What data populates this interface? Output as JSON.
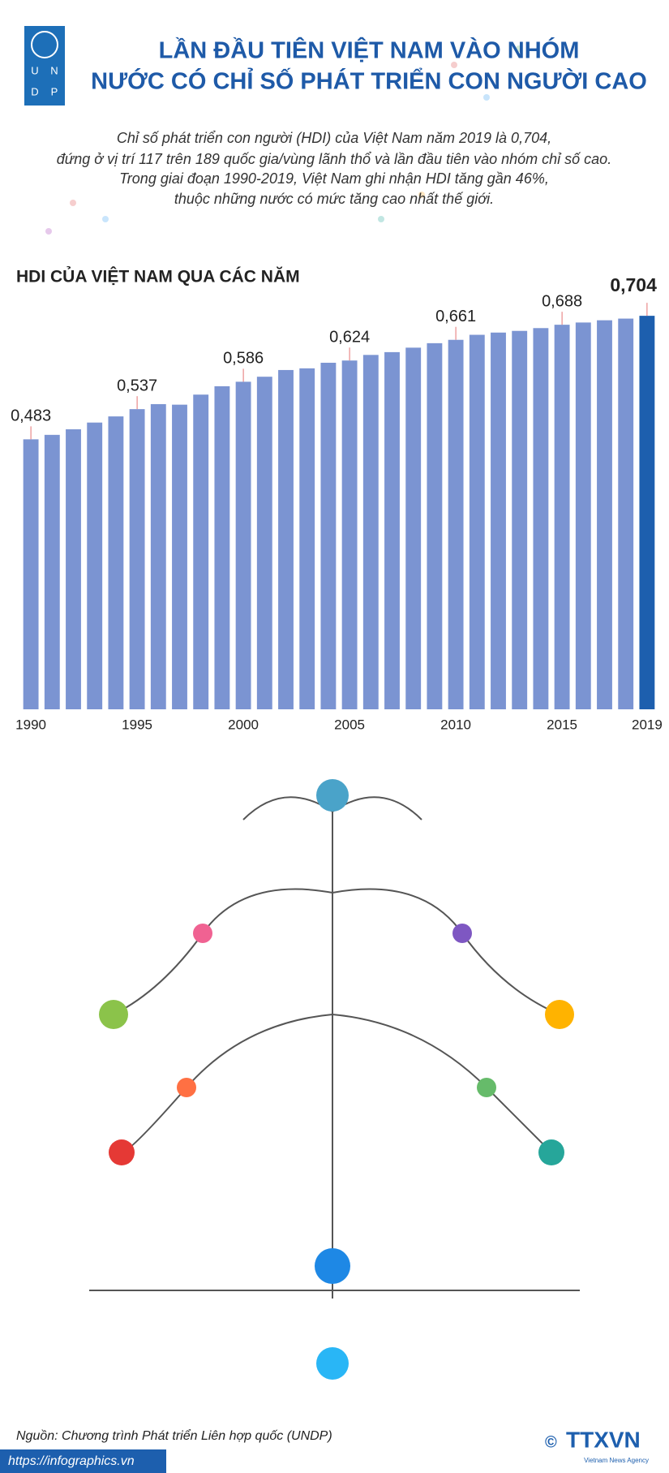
{
  "header": {
    "logo": [
      "U",
      "N",
      "D",
      "P"
    ],
    "title": [
      "LẦN ĐẦU TIÊN VIỆT NAM VÀO NHÓM",
      "NƯỚC CÓ CHỈ SỐ PHÁT TRIỂN CON NGƯỜI CAO"
    ],
    "subtitle": [
      "Chỉ số phát triển con người (HDI) của Việt Nam năm 2019 là 0,704,",
      "đứng ở vị trí 117 trên 189 quốc gia/vùng lãnh thổ và lần đầu tiên vào nhóm chỉ số cao.",
      "Trong giai đoạn 1990-2019, Việt Nam ghi nhận HDI tăng gần 46%,",
      "thuộc những nước có mức tăng cao nhất thế giới."
    ]
  },
  "chart_data": {
    "type": "bar",
    "title": "HDI CỦA VIỆT NAM QUA CÁC NĂM",
    "categories": [
      "1990",
      null,
      null,
      null,
      null,
      "1995",
      null,
      null,
      null,
      null,
      "2000",
      null,
      null,
      null,
      null,
      "2005",
      null,
      null,
      null,
      null,
      "2010",
      null,
      null,
      null,
      null,
      "2015",
      null,
      null,
      null,
      "2019"
    ],
    "values": [
      0.483,
      0.491,
      0.501,
      0.513,
      0.524,
      0.537,
      0.546,
      0.545,
      0.563,
      0.578,
      0.586,
      0.595,
      0.607,
      0.61,
      0.62,
      0.624,
      0.634,
      0.639,
      0.647,
      0.655,
      0.661,
      0.67,
      0.674,
      0.677,
      0.682,
      0.688,
      0.692,
      0.696,
      0.699,
      0.704
    ],
    "value_labels": [
      "0,483",
      null,
      null,
      null,
      null,
      "0,537",
      null,
      null,
      null,
      null,
      "0,586",
      null,
      null,
      null,
      null,
      "0,624",
      null,
      null,
      null,
      null,
      "0,661",
      null,
      null,
      null,
      null,
      "0,688",
      null,
      null,
      null,
      "0,704"
    ],
    "colors": [
      "#7b94d2",
      "#7b94d2",
      "#7b94d2",
      "#7b94d2",
      "#7b94d2",
      "#7b94d2",
      "#7b94d2",
      "#7b94d2",
      "#7b94d2",
      "#7b94d2",
      "#7b94d2",
      "#7b94d2",
      "#7b94d2",
      "#7b94d2",
      "#7b94d2",
      "#7b94d2",
      "#7b94d2",
      "#7b94d2",
      "#7b94d2",
      "#7b94d2",
      "#7b94d2",
      "#7b94d2",
      "#7b94d2",
      "#7b94d2",
      "#7b94d2",
      "#7b94d2",
      "#7b94d2",
      "#7b94d2",
      "#7b94d2",
      "#1d5fae"
    ],
    "ylim": [
      0,
      0.8
    ]
  },
  "footer": {
    "source": "Nguồn: Chương trình Phát triển Liên hợp quốc (UNDP)",
    "url": "https://infographics.vn",
    "copyright": "©",
    "agency": "TTXVN",
    "agency_en": "Vietnam News Agency"
  }
}
